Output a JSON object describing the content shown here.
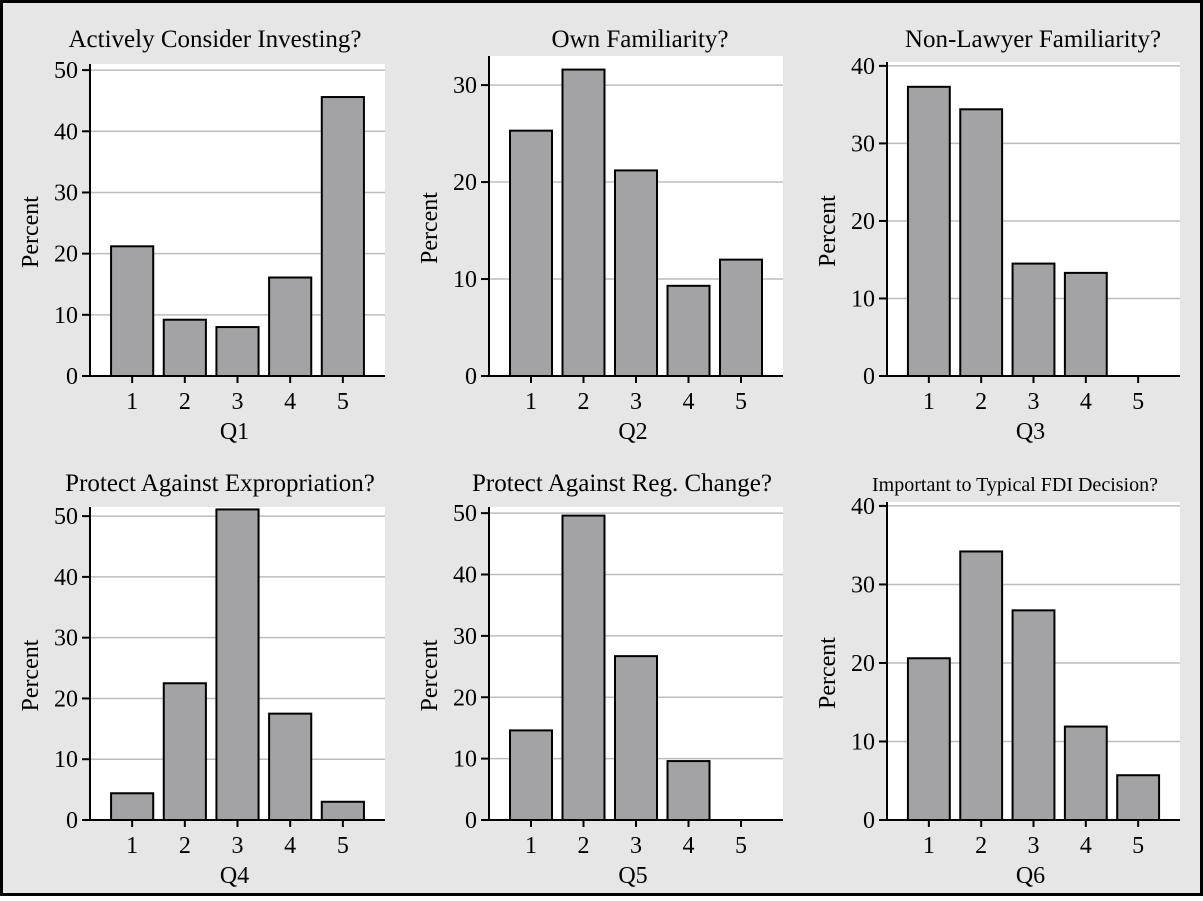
{
  "figure": {
    "background": "#e6e6e6",
    "plot_background": "#ffffff",
    "bar_fill": "#a3a3a6",
    "bar_stroke": "#000000",
    "grid_color": "#bdbdbd"
  },
  "chart_data": [
    {
      "type": "bar",
      "title": "Actively Consider Investing?",
      "xlabel": "Q1",
      "ylabel": "Percent",
      "categories": [
        "1",
        "2",
        "3",
        "4",
        "5"
      ],
      "values": [
        21.2,
        9.2,
        8.0,
        16.1,
        45.6
      ],
      "ylim": [
        0,
        51
      ],
      "yticks": [
        0,
        10,
        20,
        30,
        40,
        50
      ],
      "grid": true
    },
    {
      "type": "bar",
      "title": "Own Familiarity?",
      "xlabel": "Q2",
      "ylabel": "Percent",
      "categories": [
        "1",
        "2",
        "3",
        "4",
        "5"
      ],
      "values": [
        25.3,
        31.6,
        21.2,
        9.3,
        12.0
      ],
      "ylim": [
        0,
        33
      ],
      "yticks": [
        0,
        10,
        20,
        30
      ],
      "grid": true
    },
    {
      "type": "bar",
      "title": "Non-Lawyer Familiarity?",
      "xlabel": "Q3",
      "ylabel": "Percent",
      "categories": [
        "1",
        "2",
        "3",
        "4",
        "5"
      ],
      "values": [
        37.3,
        34.4,
        14.5,
        13.3,
        0
      ],
      "ylim": [
        0,
        40.5
      ],
      "yticks": [
        0,
        10,
        20,
        30,
        40
      ],
      "grid": true
    },
    {
      "type": "bar",
      "title": "Protect Against Expropriation?",
      "xlabel": "Q4",
      "ylabel": "Percent",
      "categories": [
        "1",
        "2",
        "3",
        "4",
        "5"
      ],
      "values": [
        4.4,
        22.5,
        51.1,
        17.5,
        3.0
      ],
      "ylim": [
        0,
        51.5
      ],
      "yticks": [
        0,
        10,
        20,
        30,
        40,
        50
      ],
      "grid": true
    },
    {
      "type": "bar",
      "title": "Protect Against Reg. Change?",
      "xlabel": "Q5",
      "ylabel": "Percent",
      "categories": [
        "1",
        "2",
        "3",
        "4",
        "5"
      ],
      "values": [
        14.6,
        49.6,
        26.7,
        9.6,
        0
      ],
      "ylim": [
        0,
        51
      ],
      "yticks": [
        0,
        10,
        20,
        30,
        40,
        50
      ],
      "grid": true
    },
    {
      "type": "bar",
      "title": "Important to Typical FDI Decision?",
      "xlabel": "Q6",
      "ylabel": "Percent",
      "categories": [
        "1",
        "2",
        "3",
        "4",
        "5"
      ],
      "values": [
        20.6,
        34.2,
        26.7,
        11.9,
        5.7
      ],
      "ylim": [
        0,
        40.5
      ],
      "yticks": [
        0,
        10,
        20,
        30,
        40
      ],
      "grid": true
    }
  ]
}
